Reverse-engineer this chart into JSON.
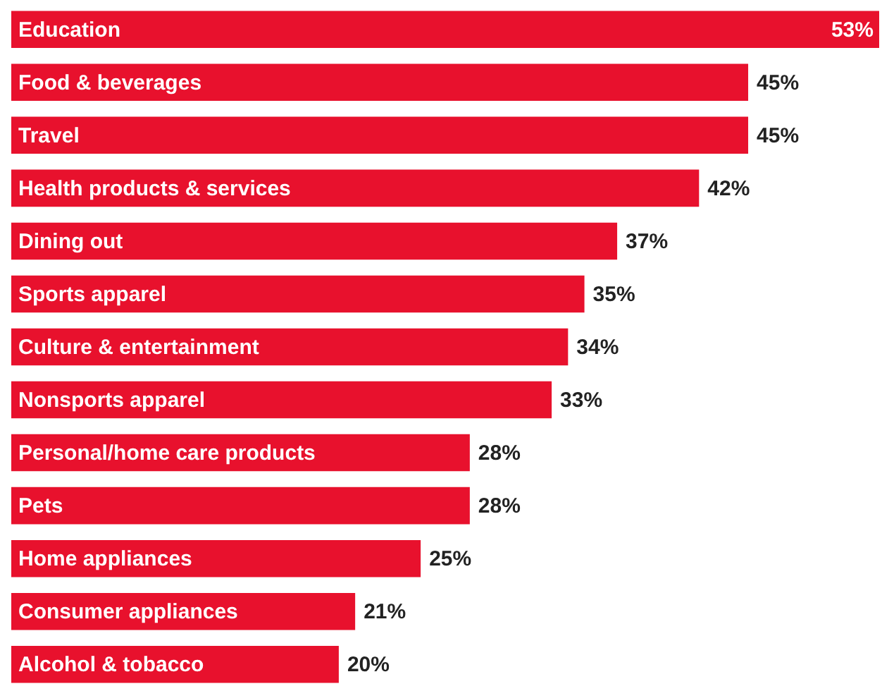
{
  "chart_data": {
    "type": "bar",
    "orientation": "horizontal",
    "categories": [
      "Education",
      "Food & beverages",
      "Travel",
      "Health products & services",
      "Dining out",
      "Sports apparel",
      "Culture & entertainment",
      "Nonsports apparel",
      "Personal/home care products",
      "Pets",
      "Home appliances",
      "Consumer appliances",
      "Alcohol & tobacco"
    ],
    "values": [
      53,
      45,
      45,
      42,
      37,
      35,
      34,
      33,
      28,
      28,
      25,
      21,
      20
    ],
    "value_labels": [
      "53%",
      "45%",
      "45%",
      "42%",
      "37%",
      "35%",
      "34%",
      "33%",
      "28%",
      "28%",
      "25%",
      "21%",
      "20%"
    ],
    "color": "#e8112d",
    "xlim": [
      0,
      53
    ]
  }
}
